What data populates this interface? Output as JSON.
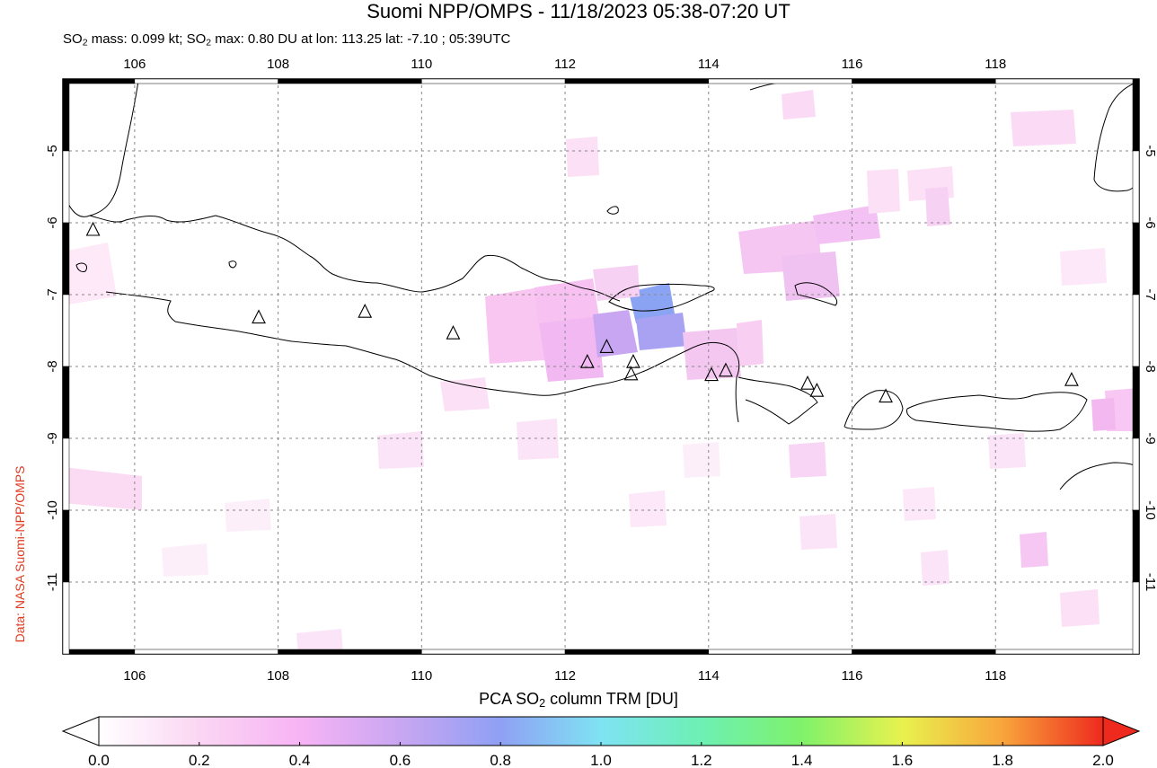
{
  "header": {
    "title": "Suomi NPP/OMPS - 11/18/2023 05:38-07:20 UT",
    "so2_mass_prefix": "SO",
    "so2_mass_text": " mass: 0.099 kt; SO",
    "so2_max_text": " max: 0.80 DU at lon: 113.25 lat: -7.10 ; 05:39UTC"
  },
  "credit": "Data: NASA Suomi-NPP/OMPS",
  "map": {
    "lon_range": [
      105.0,
      120.0
    ],
    "lat_range": [
      -12.0,
      -4.0
    ],
    "lon_ticks": [
      106,
      108,
      110,
      112,
      114,
      116,
      118
    ],
    "lon_tick_labels": [
      "106",
      "108",
      "110",
      "112",
      "114",
      "116",
      "118"
    ],
    "lat_ticks": [
      -5,
      -6,
      -7,
      -8,
      -9,
      -10,
      -11
    ],
    "lat_tick_labels": [
      "-5",
      "-6",
      "-7",
      "-8",
      "-9",
      "-10",
      "-11"
    ],
    "grid": "dotted",
    "volcanoes": [
      {
        "lon": 105.42,
        "lat": -6.1
      },
      {
        "lon": 107.73,
        "lat": -7.32
      },
      {
        "lon": 109.21,
        "lat": -7.24
      },
      {
        "lon": 110.44,
        "lat": -7.54
      },
      {
        "lon": 112.31,
        "lat": -7.94
      },
      {
        "lon": 112.58,
        "lat": -7.73
      },
      {
        "lon": 112.95,
        "lat": -7.94
      },
      {
        "lon": 112.92,
        "lat": -8.11
      },
      {
        "lon": 114.04,
        "lat": -8.12
      },
      {
        "lon": 114.24,
        "lat": -8.06
      },
      {
        "lon": 115.38,
        "lat": -8.24
      },
      {
        "lon": 115.51,
        "lat": -8.34
      },
      {
        "lon": 116.47,
        "lat": -8.42
      },
      {
        "lon": 119.06,
        "lat": -8.19
      }
    ],
    "so2_max_location": {
      "lon": 113.25,
      "lat": -7.1,
      "value_du": 0.8
    }
  },
  "colorbar": {
    "title_prefix": "PCA SO",
    "title_suffix": " column TRM [DU]",
    "min": 0.0,
    "max": 2.0,
    "tick_values": [
      0.0,
      0.2,
      0.4,
      0.6,
      0.8,
      1.0,
      1.2,
      1.4,
      1.6,
      1.8,
      2.0
    ],
    "tick_labels": [
      "0.0",
      "0.2",
      "0.4",
      "0.6",
      "0.8",
      "1.0",
      "1.2",
      "1.4",
      "1.6",
      "1.8",
      "2.0"
    ],
    "colors": [
      "#ffffff",
      "#fbd6f3",
      "#f7b4f4",
      "#c9a6f2",
      "#8fa0f4",
      "#7fe3f3",
      "#6df0b4",
      "#7ff26a",
      "#e8f24e",
      "#f8a53c",
      "#ee2a1e"
    ]
  }
}
